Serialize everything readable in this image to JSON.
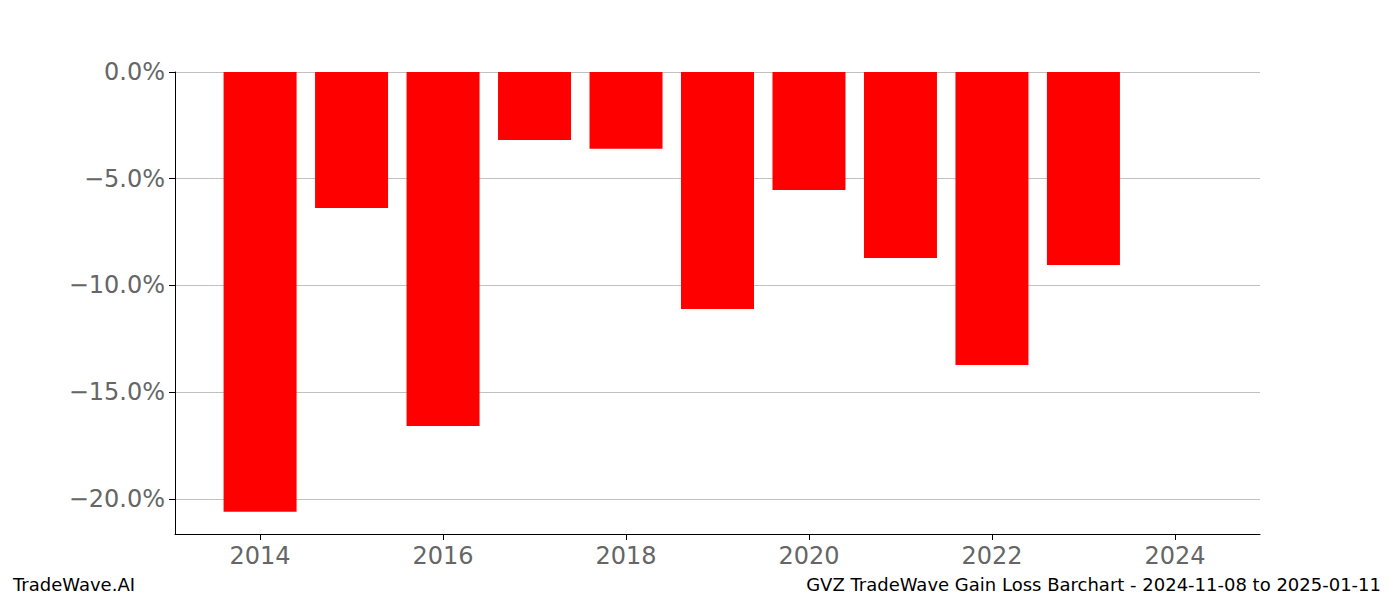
{
  "chart_data": {
    "type": "bar",
    "title": "GVZ TradeWave Gain Loss Barchart - 2024-11-08 to 2025-01-11",
    "annotations": [
      "TradeWave.AI"
    ],
    "x": [
      2014,
      2015,
      2016,
      2017,
      2018,
      2019,
      2020,
      2021,
      2022,
      2023
    ],
    "values": [
      -20.6,
      -6.37,
      -16.58,
      -3.18,
      -3.6,
      -11.1,
      -5.53,
      -8.71,
      -13.72,
      -9.04
    ],
    "color": "#ff0000",
    "xlim": [
      2013.07,
      2024.93
    ],
    "xticks": [
      2014,
      2016,
      2018,
      2020,
      2022,
      2024
    ],
    "ylim": [
      -21.64,
      0
    ],
    "yticks": [
      {
        "value": 0,
        "label": "0.0%"
      },
      {
        "value": -5,
        "label": "−5.0%"
      },
      {
        "value": -10,
        "label": "−10.0%"
      },
      {
        "value": -15,
        "label": "−15.0%"
      },
      {
        "value": -20,
        "label": "−20.0%"
      }
    ],
    "grid": true
  }
}
